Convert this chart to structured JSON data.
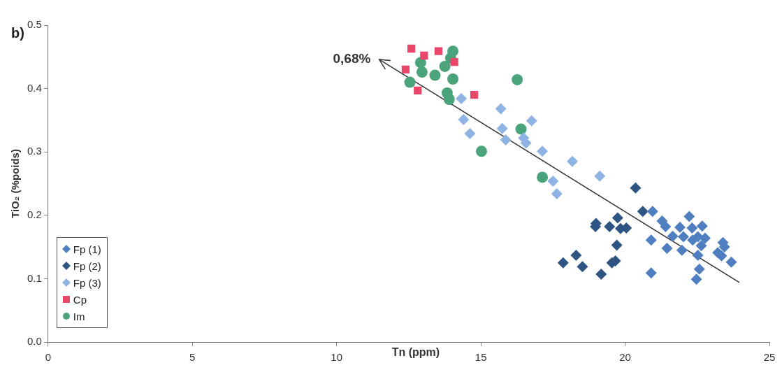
{
  "chart_data": {
    "type": "scatter",
    "title": "b)",
    "xlabel": "Tn (ppm)",
    "ylabel": "TiO₂ (%poids)",
    "xlim": [
      0,
      25
    ],
    "xticks": [
      0,
      5,
      10,
      15,
      20,
      25
    ],
    "ylim": [
      0,
      0.5
    ],
    "yticks": [
      {
        "value": 0,
        "label": "0.0"
      },
      0.1,
      0.2,
      0.3,
      0.4,
      0.5
    ],
    "grid": false,
    "legend": "bottom left",
    "annotations": [
      {
        "text": "0,68%",
        "x": 11.47,
        "y": 0.446
      }
    ],
    "series": [
      {
        "name": "Fp (1)",
        "color": "#4f7fc0",
        "marker": "diamond",
        "x": [
          20.95,
          21.28,
          21.4,
          21.9,
          22.22,
          22.32,
          22.67,
          21.65,
          22.02,
          22.34,
          22.52,
          22.77,
          22.64,
          21.97,
          21.45,
          20.9,
          22.52,
          23.21,
          23.39,
          23.44,
          23.34,
          23.68,
          22.57,
          22.47,
          20.9
        ],
        "values": [
          0.206,
          0.191,
          0.182,
          0.181,
          0.198,
          0.18,
          0.183,
          0.167,
          0.166,
          0.161,
          0.166,
          0.164,
          0.152,
          0.145,
          0.148,
          0.161,
          0.137,
          0.141,
          0.157,
          0.15,
          0.136,
          0.126,
          0.115,
          0.099,
          0.109
        ]
      },
      {
        "name": "Fp (2)",
        "color": "#2e5484",
        "marker": "diamond",
        "x": [
          20.36,
          20.61,
          18.99,
          18.97,
          19.46,
          19.74,
          19.84,
          20.04,
          19.71,
          18.3,
          17.85,
          18.52,
          19.17,
          19.54,
          19.66
        ],
        "values": [
          0.243,
          0.206,
          0.187,
          0.182,
          0.182,
          0.196,
          0.179,
          0.18,
          0.153,
          0.137,
          0.125,
          0.119,
          0.107,
          0.125,
          0.128
        ]
      },
      {
        "name": "Fp (3)",
        "color": "#8fb4e3",
        "marker": "diamond",
        "x": [
          14.32,
          15.69,
          14.4,
          14.62,
          15.74,
          15.86,
          16.48,
          16.56,
          16.76,
          17.13,
          18.17,
          19.12,
          17.5,
          17.63
        ],
        "values": [
          0.384,
          0.368,
          0.351,
          0.329,
          0.337,
          0.319,
          0.322,
          0.314,
          0.349,
          0.301,
          0.285,
          0.262,
          0.254,
          0.234
        ]
      },
      {
        "name": "Cp",
        "color": "#e8476a",
        "marker": "square",
        "x": [
          12.59,
          13.03,
          13.53,
          14.08,
          12.39,
          12.81,
          14.77
        ],
        "values": [
          0.463,
          0.452,
          0.459,
          0.442,
          0.43,
          0.397,
          0.39
        ]
      },
      {
        "name": "Im",
        "color": "#4aa37a",
        "marker": "circle",
        "x": [
          14.03,
          13.95,
          12.91,
          13.75,
          12.96,
          13.41,
          14.03,
          12.54,
          16.26,
          13.83,
          13.9,
          16.39,
          15.02,
          17.13
        ],
        "values": [
          0.459,
          0.448,
          0.441,
          0.435,
          0.426,
          0.421,
          0.415,
          0.41,
          0.414,
          0.393,
          0.383,
          0.336,
          0.301,
          0.26
        ]
      },
      {
        "type": "line",
        "color": "#333333",
        "x": [
          23.96,
          11.47
        ],
        "values": [
          0.094,
          0.446
        ]
      }
    ]
  }
}
